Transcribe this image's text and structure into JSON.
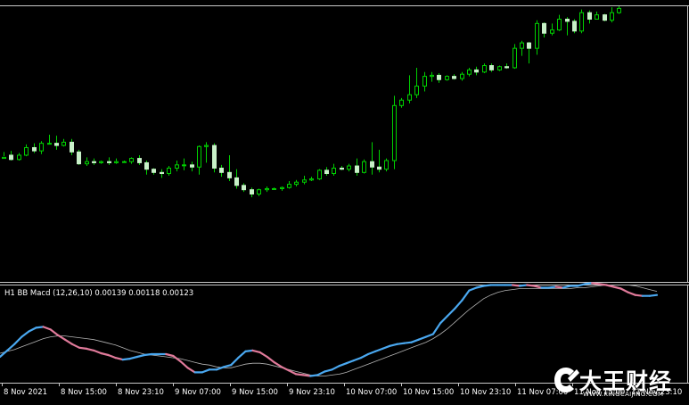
{
  "colors": {
    "background": "#000000",
    "frame": "#c8c8c8",
    "candle": "#00d000",
    "candle_up_fill": "#000000",
    "candle_down_fill": "#c8f0c8",
    "macd_up": "#4aa8f0",
    "macd_down": "#e07a9a",
    "signal": "#b4b4b4",
    "text": "#ffffff"
  },
  "indicator": {
    "label": "H1 BB Macd (12,26,10) 0.00139 0.00118 0.00123"
  },
  "time_axis": {
    "labels": [
      "8 Nov 2021",
      "8 Nov 15:00",
      "8 Nov 23:10",
      "9 Nov 07:00",
      "9 Nov 15:00",
      "9 Nov 23:10",
      "10 Nov 07:00",
      "10 Nov 15:00",
      "10 Nov 23:10",
      "11 Nov 07:00",
      "11 Nov 15:00",
      "11 Nov 23:10"
    ]
  },
  "watermark": {
    "brand": "大王财经",
    "url": "WWW.KINGCAIJING.COM",
    "icon": "brand-logo-icon"
  },
  "chart_data": [
    {
      "type": "candlestick",
      "title": "",
      "bars": [
        [
          2,
          3,
          8,
          4
        ],
        [
          5,
          1,
          9,
          0
        ],
        [
          1,
          5,
          7,
          0
        ],
        [
          5,
          12,
          15,
          4
        ],
        [
          12,
          9,
          16,
          7
        ],
        [
          9,
          16,
          18,
          6
        ],
        [
          16,
          16,
          24,
          15
        ],
        [
          16,
          14,
          23,
          10
        ],
        [
          14,
          17,
          20,
          13
        ],
        [
          17,
          8,
          20,
          5
        ],
        [
          8,
          -3,
          10,
          -4
        ],
        [
          -3,
          -1,
          3,
          -5
        ],
        [
          -1,
          -2,
          2,
          -4
        ],
        [
          -2,
          -1,
          0,
          -3
        ],
        [
          -1,
          -2,
          3,
          -4
        ],
        [
          -2,
          -1,
          2,
          -3
        ],
        [
          -1,
          -1,
          0,
          -2
        ],
        [
          -1,
          2,
          3,
          -3
        ],
        [
          2,
          -2,
          5,
          -4
        ],
        [
          -2,
          -8,
          0,
          -13
        ],
        [
          -8,
          -11,
          -7,
          -13
        ],
        [
          -11,
          -12,
          -8,
          -16
        ],
        [
          -12,
          -7,
          -5,
          -14
        ],
        [
          -7,
          -4,
          0,
          -10
        ],
        [
          -4,
          -4,
          2,
          -9
        ],
        [
          -4,
          -6,
          -1,
          -10
        ],
        [
          -6,
          13,
          14,
          -13
        ],
        [
          13,
          14,
          17,
          -2
        ],
        [
          14,
          -7,
          16,
          -11
        ],
        [
          -7,
          -11,
          -4,
          -15
        ],
        [
          -11,
          -16,
          5,
          -19
        ],
        [
          -16,
          -23,
          -8,
          -26
        ],
        [
          -23,
          -27,
          -21,
          -29
        ],
        [
          -27,
          -31,
          -25,
          -34
        ],
        [
          -31,
          -27,
          -26,
          -33
        ],
        [
          -27,
          -26,
          -24,
          -29
        ],
        [
          -26,
          -26,
          -25,
          -27
        ],
        [
          -26,
          -25,
          -24,
          -28
        ],
        [
          -25,
          -22,
          -19,
          -26
        ],
        [
          -22,
          -20,
          -18,
          -24
        ],
        [
          -20,
          -18,
          -14,
          -22
        ],
        [
          -18,
          -17,
          -15,
          -19
        ],
        [
          -17,
          -9,
          -8,
          -18
        ],
        [
          -9,
          -12,
          -6,
          -14
        ],
        [
          -12,
          -7,
          -3,
          -14
        ],
        [
          -7,
          -8,
          -5,
          -9
        ],
        [
          -8,
          -5,
          -3,
          -10
        ],
        [
          -5,
          -11,
          2,
          -14
        ],
        [
          -11,
          -1,
          1,
          -12
        ],
        [
          -1,
          -6,
          17,
          -13
        ],
        [
          -6,
          -8,
          10,
          -11
        ],
        [
          -8,
          0,
          2,
          -10
        ],
        [
          0,
          51,
          60,
          -8
        ],
        [
          51,
          56,
          58,
          49
        ],
        [
          56,
          61,
          79,
          53
        ],
        [
          61,
          69,
          86,
          58
        ],
        [
          69,
          78,
          82,
          64
        ],
        [
          78,
          79,
          82,
          73
        ],
        [
          79,
          75,
          81,
          72
        ],
        [
          75,
          78,
          79,
          74
        ],
        [
          78,
          76,
          80,
          75
        ],
        [
          76,
          80,
          82,
          74
        ],
        [
          80,
          84,
          86,
          78
        ],
        [
          84,
          82,
          87,
          79
        ],
        [
          82,
          88,
          90,
          81
        ],
        [
          88,
          84,
          90,
          82
        ],
        [
          84,
          87,
          88,
          83
        ],
        [
          87,
          86,
          90,
          85
        ],
        [
          86,
          104,
          108,
          85
        ],
        [
          104,
          109,
          111,
          97
        ],
        [
          109,
          104,
          110,
          90
        ],
        [
          104,
          127,
          130,
          98
        ],
        [
          127,
          118,
          128,
          114
        ],
        [
          118,
          121,
          127,
          116
        ],
        [
          121,
          131,
          135,
          120
        ],
        [
          131,
          129,
          133,
          116
        ],
        [
          129,
          120,
          131,
          118
        ],
        [
          120,
          137,
          140,
          118
        ],
        [
          137,
          131,
          139,
          127
        ],
        [
          131,
          135,
          138,
          131
        ],
        [
          135,
          130,
          136,
          129
        ],
        [
          130,
          137,
          142,
          128
        ],
        [
          137,
          141,
          143,
          136
        ]
      ]
    },
    {
      "type": "line",
      "title": "",
      "series": [
        {
          "values": [
            -0.2,
            0.5,
            1.2,
            2.0,
            2.6,
            3.0,
            3.1,
            2.8,
            2.2,
            1.7,
            1.2,
            0.8,
            0.7,
            0.5,
            0.2,
            0.0,
            -0.3,
            -0.5,
            -0.4,
            -0.2,
            0.0,
            0.1,
            0.1,
            0.1,
            -0.1,
            -0.7,
            -1.4,
            -1.9,
            -1.9,
            -1.6,
            -1.6,
            -1.3,
            -1.1,
            -0.3,
            0.4,
            0.5,
            0.3,
            -0.2,
            -0.8,
            -1.3,
            -1.7,
            -2.1,
            -2.2,
            -2.3,
            -2.2,
            -1.8,
            -1.6,
            -1.2,
            -0.9,
            -0.6,
            -0.3,
            0.1,
            0.4,
            0.7,
            1.0,
            1.2,
            1.3,
            1.4,
            1.7,
            2.0,
            2.3,
            3.5,
            4.3,
            5.1,
            6.0,
            7.1,
            7.4,
            7.6,
            7.7,
            7.7,
            7.7,
            7.7,
            7.6,
            7.7,
            7.6,
            7.4,
            7.4,
            7.5,
            7.4,
            7.6,
            7.6,
            7.8,
            7.9,
            7.8,
            7.7,
            7.5,
            7.3,
            6.9,
            6.6,
            6.5,
            6.5,
            6.6
          ]
        },
        {
          "values": [
            0.2,
            0.4,
            0.6,
            0.9,
            1.2,
            1.5,
            1.8,
            2.0,
            2.1,
            2.1,
            2.0,
            1.9,
            1.8,
            1.7,
            1.5,
            1.3,
            1.1,
            0.8,
            0.5,
            0.3,
            0.1,
            0.0,
            -0.1,
            -0.2,
            -0.3,
            -0.4,
            -0.6,
            -0.8,
            -1.0,
            -1.1,
            -1.3,
            -1.4,
            -1.4,
            -1.2,
            -1.0,
            -0.9,
            -0.9,
            -1.0,
            -1.2,
            -1.4,
            -1.6,
            -1.8,
            -2.0,
            -2.2,
            -2.3,
            -2.3,
            -2.2,
            -2.1,
            -1.9,
            -1.6,
            -1.3,
            -1.0,
            -0.7,
            -0.4,
            -0.1,
            0.2,
            0.5,
            0.8,
            1.1,
            1.4,
            1.8,
            2.3,
            2.9,
            3.6,
            4.3,
            5.0,
            5.6,
            6.2,
            6.6,
            6.9,
            7.1,
            7.2,
            7.3,
            7.3,
            7.3,
            7.3,
            7.3,
            7.3,
            7.3,
            7.3,
            7.4,
            7.4,
            7.5,
            7.6,
            7.7,
            7.7,
            7.7,
            7.7,
            7.6,
            7.4,
            7.2,
            7.0
          ]
        }
      ]
    }
  ]
}
